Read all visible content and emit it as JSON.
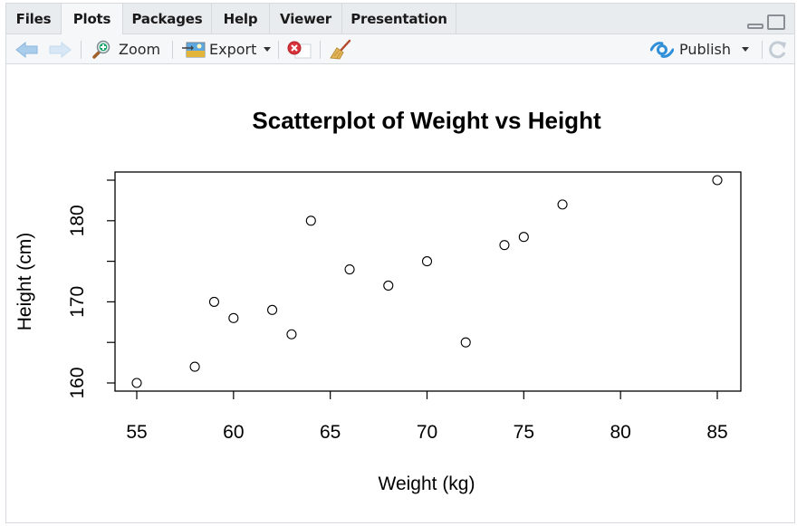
{
  "tabs": [
    {
      "label": "Files",
      "active": false
    },
    {
      "label": "Plots",
      "active": true
    },
    {
      "label": "Packages",
      "active": false
    },
    {
      "label": "Help",
      "active": false
    },
    {
      "label": "Viewer",
      "active": false
    },
    {
      "label": "Presentation",
      "active": false
    }
  ],
  "toolbar": {
    "back_icon": "arrow-left-icon",
    "forward_icon": "arrow-right-icon",
    "zoom_label": "Zoom",
    "export_label": "Export",
    "remove_icon": "remove-plot-icon",
    "clear_icon": "broom-icon",
    "publish_label": "Publish",
    "refresh_icon": "refresh-icon"
  },
  "colors": {
    "tabbar_bg": "#e9ecef",
    "toolbar_bg": "#f5f7f9",
    "publish_blue": "#2f8fd8",
    "remove_red": "#d9323a"
  },
  "chart_data": {
    "type": "scatter",
    "title": "Scatterplot of Weight vs Height",
    "xlabel": "Weight (kg)",
    "ylabel": "Height (cm)",
    "x": [
      55,
      58,
      59,
      60,
      62,
      63,
      64,
      66,
      68,
      70,
      72,
      74,
      75,
      77,
      85
    ],
    "y": [
      160,
      162,
      170,
      168,
      169,
      166,
      180,
      174,
      172,
      175,
      165,
      177,
      178,
      182,
      185
    ],
    "xticks": [
      55,
      60,
      65,
      70,
      75,
      80,
      85
    ],
    "yticks": [
      160,
      165,
      170,
      175,
      180,
      185
    ],
    "ytick_labels": [
      "160",
      "",
      "170",
      "",
      "180",
      ""
    ],
    "xlim": [
      53.8,
      86.2
    ],
    "ylim": [
      159,
      186
    ],
    "grid": false,
    "legend": null,
    "marker": "open-circle"
  }
}
